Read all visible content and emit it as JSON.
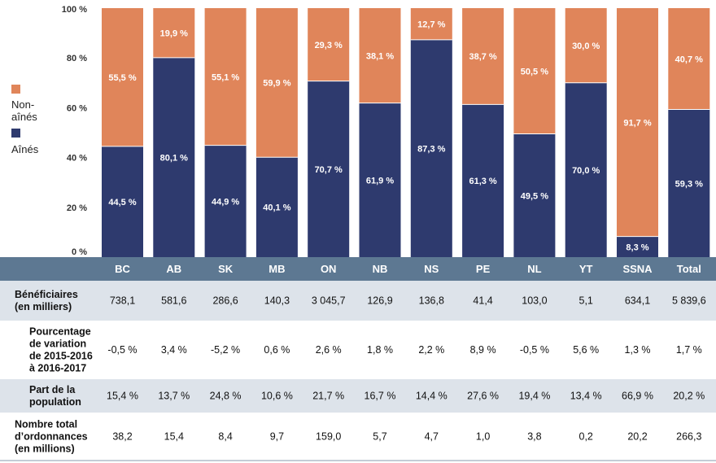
{
  "chart_data": {
    "type": "bar",
    "stacked": true,
    "categories": [
      "BC",
      "AB",
      "SK",
      "MB",
      "ON",
      "NB",
      "NS",
      "PE",
      "NL",
      "YT",
      "SSNA",
      "Total"
    ],
    "series": [
      {
        "name": "Aînés",
        "color": "#2e3a6e",
        "values": [
          44.5,
          80.1,
          44.9,
          40.1,
          70.7,
          61.9,
          87.3,
          61.3,
          49.5,
          70.0,
          8.3,
          59.3
        ],
        "labels": [
          "44,5 %",
          "80,1 %",
          "44,9 %",
          "40,1 %",
          "70,7 %",
          "61,9 %",
          "87,3 %",
          "61,3 %",
          "49,5 %",
          "70,0 %",
          "8,3 %",
          "59,3 %"
        ]
      },
      {
        "name": "Non-aînés",
        "color": "#e0855a",
        "values": [
          55.5,
          19.9,
          55.1,
          59.9,
          29.3,
          38.1,
          12.7,
          38.7,
          50.5,
          30.0,
          91.7,
          40.7
        ],
        "labels": [
          "55,5 %",
          "19,9 %",
          "55,1 %",
          "59,9 %",
          "29,3 %",
          "38,1 %",
          "12,7 %",
          "38,7 %",
          "50,5 %",
          "30,0 %",
          "91,7 %",
          "40,7 %"
        ]
      }
    ],
    "ylim": [
      0,
      100
    ],
    "yticks": [
      "0 %",
      "20 %",
      "40 %",
      "60 %",
      "80 %",
      "100 %"
    ],
    "legend": {
      "placement": "left",
      "items": [
        "Non-aînés",
        "Aînés"
      ]
    }
  },
  "table": {
    "header_color": "#5d7892",
    "stripe_color": "#dde3ea",
    "rows": [
      {
        "label": "Bénéficiaires (en milliers)",
        "label_lines": [
          "Bénéficiaires",
          "(en milliers)"
        ],
        "values": [
          "738,1",
          "581,6",
          "286,6",
          "140,3",
          "3 045,7",
          "126,9",
          "136,8",
          "41,4",
          "103,0",
          "5,1",
          "634,1",
          "5 839,6"
        ]
      },
      {
        "label": "Pourcentage de variation de 2015-2016 à 2016-2017",
        "label_lines": [
          "Pourcentage",
          "de variation",
          "de 2015-2016",
          "à 2016-2017"
        ],
        "values": [
          "-0,5 %",
          "3,4 %",
          "-5,2 %",
          "0,6 %",
          "2,6 %",
          "1,8 %",
          "2,2 %",
          "8,9 %",
          "-0,5 %",
          "5,6 %",
          "1,3 %",
          "1,7 %"
        ]
      },
      {
        "label": "Part de la population",
        "label_lines": [
          "Part de la",
          "population"
        ],
        "values": [
          "15,4 %",
          "13,7 %",
          "24,8 %",
          "10,6 %",
          "21,7 %",
          "16,7 %",
          "14,4 %",
          "27,6 %",
          "19,4 %",
          "13,4 %",
          "66,9 %",
          "20,2 %"
        ]
      },
      {
        "label": "Nombre total d'ordonnances (en millions)",
        "label_lines": [
          "Nombre total",
          "d’ordonnances",
          "(en millions)"
        ],
        "values": [
          "38,2",
          "15,4",
          "8,4",
          "9,7",
          "159,0",
          "5,7",
          "4,7",
          "1,0",
          "3,8",
          "0,2",
          "20,2",
          "266,3"
        ]
      }
    ]
  }
}
